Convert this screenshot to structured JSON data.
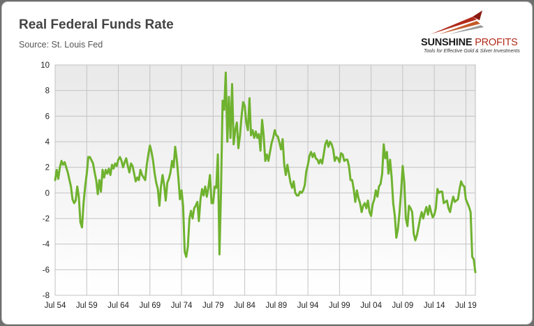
{
  "title": "Real Federal Funds Rate",
  "subtitle": "Source: St. Louis Fed",
  "logo": {
    "name_part1": "SUNSHINE",
    "name_part2": "PROFITS",
    "tagline": "Tools for Effective Gold & Silver Investments",
    "accent_color": "#b22a1a"
  },
  "chart_data": {
    "type": "line",
    "title": "Real Federal Funds Rate",
    "subtitle": "Source: St. Louis Fed",
    "xlabel": "",
    "ylabel": "",
    "ylim": [
      -8,
      10
    ],
    "xlim": [
      "1954-07",
      "2021-01"
    ],
    "yticks": [
      -8,
      -6,
      -4,
      -2,
      0,
      2,
      4,
      6,
      8,
      10
    ],
    "xtick_labels": [
      "Jul 54",
      "Jul 59",
      "Jul 64",
      "Jul 69",
      "Jul 74",
      "Jul 79",
      "Jul 84",
      "Jul 89",
      "Jul 94",
      "Jul 99",
      "Jul 04",
      "Jul 09",
      "Jul 14",
      "Jul 19"
    ],
    "xtick_dates": [
      "1954-07",
      "1959-07",
      "1964-07",
      "1969-07",
      "1974-07",
      "1979-07",
      "1984-07",
      "1989-07",
      "1994-07",
      "1999-07",
      "2004-07",
      "2009-07",
      "2014-07",
      "2019-07"
    ],
    "grid": "vertical and horizontal",
    "legend": "none",
    "series": [
      {
        "color": "#6fb22f",
        "points": [
          [
            "1954-07",
            1.0
          ],
          [
            "1954-10",
            1.8
          ],
          [
            "1955-01",
            1.1
          ],
          [
            "1955-04",
            2.0
          ],
          [
            "1955-07",
            2.5
          ],
          [
            "1955-10",
            2.2
          ],
          [
            "1956-01",
            2.4
          ],
          [
            "1956-07",
            1.6
          ],
          [
            "1957-01",
            0.5
          ],
          [
            "1957-04",
            -0.5
          ],
          [
            "1957-07",
            -0.8
          ],
          [
            "1957-10",
            -0.6
          ],
          [
            "1958-01",
            0.5
          ],
          [
            "1958-04",
            -0.3
          ],
          [
            "1958-07",
            -2.3
          ],
          [
            "1958-10",
            -2.7
          ],
          [
            "1959-01",
            -0.8
          ],
          [
            "1959-04",
            0.5
          ],
          [
            "1959-07",
            1.5
          ],
          [
            "1959-10",
            2.8
          ],
          [
            "1960-01",
            2.8
          ],
          [
            "1960-07",
            2.3
          ],
          [
            "1960-10",
            1.6
          ],
          [
            "1961-01",
            1.0
          ],
          [
            "1961-04",
            -0.1
          ],
          [
            "1961-07",
            1.0
          ],
          [
            "1961-10",
            0.1
          ],
          [
            "1962-01",
            1.8
          ],
          [
            "1962-04",
            1.2
          ],
          [
            "1962-07",
            1.8
          ],
          [
            "1962-10",
            1.5
          ],
          [
            "1963-01",
            1.9
          ],
          [
            "1963-04",
            1.4
          ],
          [
            "1963-07",
            2.2
          ],
          [
            "1963-10",
            1.9
          ],
          [
            "1964-01",
            2.3
          ],
          [
            "1964-04",
            2.1
          ],
          [
            "1964-07",
            2.6
          ],
          [
            "1964-10",
            2.8
          ],
          [
            "1965-01",
            2.5
          ],
          [
            "1965-04",
            2.0
          ],
          [
            "1965-07",
            2.4
          ],
          [
            "1965-10",
            2.7
          ],
          [
            "1966-01",
            2.1
          ],
          [
            "1966-04",
            1.6
          ],
          [
            "1966-07",
            2.3
          ],
          [
            "1966-10",
            2.1
          ],
          [
            "1967-01",
            1.5
          ],
          [
            "1967-04",
            0.9
          ],
          [
            "1967-07",
            1.2
          ],
          [
            "1967-10",
            1.0
          ],
          [
            "1968-01",
            1.8
          ],
          [
            "1968-04",
            1.4
          ],
          [
            "1968-07",
            1.2
          ],
          [
            "1968-10",
            1.0
          ],
          [
            "1969-01",
            2.2
          ],
          [
            "1969-04",
            3.0
          ],
          [
            "1969-07",
            3.7
          ],
          [
            "1969-10",
            3.2
          ],
          [
            "1970-01",
            2.5
          ],
          [
            "1970-04",
            1.5
          ],
          [
            "1970-07",
            0.8
          ],
          [
            "1970-10",
            0.3
          ],
          [
            "1971-01",
            -1.0
          ],
          [
            "1971-04",
            0.5
          ],
          [
            "1971-07",
            1.4
          ],
          [
            "1971-10",
            0.6
          ],
          [
            "1972-01",
            -0.6
          ],
          [
            "1972-04",
            0.8
          ],
          [
            "1972-07",
            1.1
          ],
          [
            "1972-10",
            1.6
          ],
          [
            "1973-01",
            2.5
          ],
          [
            "1973-04",
            2.0
          ],
          [
            "1973-07",
            3.6
          ],
          [
            "1973-10",
            2.6
          ],
          [
            "1974-01",
            1.2
          ],
          [
            "1974-04",
            -0.5
          ],
          [
            "1974-07",
            0.2
          ],
          [
            "1974-10",
            -1.0
          ],
          [
            "1975-01",
            -4.6
          ],
          [
            "1975-04",
            -5.0
          ],
          [
            "1975-07",
            -4.2
          ],
          [
            "1975-10",
            -2.0
          ],
          [
            "1976-01",
            -1.4
          ],
          [
            "1976-04",
            -2.0
          ],
          [
            "1976-07",
            -1.2
          ],
          [
            "1976-10",
            -1.0
          ],
          [
            "1977-01",
            -0.7
          ],
          [
            "1977-04",
            -2.2
          ],
          [
            "1977-07",
            -0.5
          ],
          [
            "1977-10",
            0.3
          ],
          [
            "1978-01",
            -0.2
          ],
          [
            "1978-04",
            0.5
          ],
          [
            "1978-07",
            -0.3
          ],
          [
            "1978-10",
            0.4
          ],
          [
            "1979-01",
            1.4
          ],
          [
            "1979-04",
            -0.8
          ],
          [
            "1979-07",
            -0.8
          ],
          [
            "1979-10",
            0.5
          ],
          [
            "1980-01",
            0.4
          ],
          [
            "1980-04",
            3.0
          ],
          [
            "1980-07",
            -4.8
          ],
          [
            "1980-10",
            0.1
          ],
          [
            "1981-01",
            7.2
          ],
          [
            "1981-04",
            6.5
          ],
          [
            "1981-07",
            9.4
          ],
          [
            "1981-10",
            4.0
          ],
          [
            "1982-01",
            7.5
          ],
          [
            "1982-04",
            4.3
          ],
          [
            "1982-07",
            8.5
          ],
          [
            "1982-10",
            3.8
          ],
          [
            "1983-01",
            4.9
          ],
          [
            "1983-04",
            5.5
          ],
          [
            "1983-07",
            3.5
          ],
          [
            "1983-10",
            4.5
          ],
          [
            "1984-01",
            6.0
          ],
          [
            "1984-04",
            7.1
          ],
          [
            "1984-07",
            6.8
          ],
          [
            "1984-10",
            5.5
          ],
          [
            "1985-01",
            4.9
          ],
          [
            "1985-04",
            7.4
          ],
          [
            "1985-07",
            4.5
          ],
          [
            "1985-10",
            4.9
          ],
          [
            "1986-01",
            4.3
          ],
          [
            "1986-04",
            4.8
          ],
          [
            "1986-07",
            4.3
          ],
          [
            "1986-10",
            4.6
          ],
          [
            "1987-01",
            3.3
          ],
          [
            "1987-04",
            5.7
          ],
          [
            "1987-07",
            4.5
          ],
          [
            "1987-10",
            2.5
          ],
          [
            "1988-01",
            3.0
          ],
          [
            "1988-04",
            2.5
          ],
          [
            "1988-07",
            3.2
          ],
          [
            "1988-10",
            3.9
          ],
          [
            "1989-01",
            4.3
          ],
          [
            "1989-04",
            4.9
          ],
          [
            "1989-07",
            4.5
          ],
          [
            "1989-10",
            4.4
          ],
          [
            "1990-01",
            3.9
          ],
          [
            "1990-04",
            3.4
          ],
          [
            "1990-07",
            4.2
          ],
          [
            "1990-10",
            2.2
          ],
          [
            "1991-01",
            1.4
          ],
          [
            "1991-04",
            2.2
          ],
          [
            "1991-07",
            1.5
          ],
          [
            "1991-10",
            0.8
          ],
          [
            "1992-01",
            0.4
          ],
          [
            "1992-04",
            0.9
          ],
          [
            "1992-07",
            0.0
          ],
          [
            "1992-10",
            -0.2
          ],
          [
            "1993-01",
            -0.2
          ],
          [
            "1993-04",
            0.1
          ],
          [
            "1993-07",
            0.0
          ],
          [
            "1993-10",
            0.2
          ],
          [
            "1994-01",
            0.6
          ],
          [
            "1994-04",
            1.7
          ],
          [
            "1994-07",
            2.2
          ],
          [
            "1994-10",
            2.9
          ],
          [
            "1995-01",
            3.2
          ],
          [
            "1995-04",
            2.8
          ],
          [
            "1995-07",
            3.1
          ],
          [
            "1995-10",
            2.7
          ],
          [
            "1996-01",
            2.6
          ],
          [
            "1996-04",
            2.3
          ],
          [
            "1996-07",
            2.6
          ],
          [
            "1996-10",
            2.3
          ],
          [
            "1997-01",
            3.0
          ],
          [
            "1997-04",
            3.8
          ],
          [
            "1997-07",
            4.1
          ],
          [
            "1997-10",
            3.6
          ],
          [
            "1998-01",
            4.0
          ],
          [
            "1998-04",
            3.8
          ],
          [
            "1998-07",
            3.4
          ],
          [
            "1998-10",
            2.5
          ],
          [
            "1999-01",
            2.8
          ],
          [
            "1999-04",
            2.7
          ],
          [
            "1999-07",
            2.4
          ],
          [
            "1999-10",
            3.1
          ],
          [
            "2000-01",
            3.0
          ],
          [
            "2000-04",
            2.5
          ],
          [
            "2000-07",
            2.6
          ],
          [
            "2000-10",
            2.6
          ],
          [
            "2001-01",
            2.1
          ],
          [
            "2001-04",
            1.0
          ],
          [
            "2001-07",
            1.0
          ],
          [
            "2001-10",
            0.3
          ],
          [
            "2002-01",
            -0.7
          ],
          [
            "2002-04",
            0.2
          ],
          [
            "2002-07",
            -0.4
          ],
          [
            "2002-10",
            -0.8
          ],
          [
            "2003-01",
            -1.5
          ],
          [
            "2003-04",
            -1.0
          ],
          [
            "2003-07",
            -0.8
          ],
          [
            "2003-10",
            -1.2
          ],
          [
            "2004-01",
            -0.6
          ],
          [
            "2004-04",
            -1.5
          ],
          [
            "2004-07",
            -1.8
          ],
          [
            "2004-10",
            -0.9
          ],
          [
            "2005-01",
            -0.5
          ],
          [
            "2005-04",
            0.2
          ],
          [
            "2005-07",
            -0.3
          ],
          [
            "2005-10",
            0.5
          ],
          [
            "2006-01",
            0.7
          ],
          [
            "2006-04",
            1.5
          ],
          [
            "2006-07",
            3.8
          ],
          [
            "2006-10",
            2.7
          ],
          [
            "2007-01",
            3.2
          ],
          [
            "2007-04",
            1.5
          ],
          [
            "2007-07",
            2.6
          ],
          [
            "2007-10",
            1.2
          ],
          [
            "2008-01",
            -0.8
          ],
          [
            "2008-04",
            -1.8
          ],
          [
            "2008-07",
            -3.5
          ],
          [
            "2008-10",
            -2.8
          ],
          [
            "2009-01",
            -1.5
          ],
          [
            "2009-04",
            0.1
          ],
          [
            "2009-07",
            2.1
          ],
          [
            "2009-10",
            0.8
          ],
          [
            "2010-01",
            -2.0
          ],
          [
            "2010-04",
            -2.6
          ],
          [
            "2010-07",
            -1.0
          ],
          [
            "2010-10",
            -1.2
          ],
          [
            "2011-01",
            -1.5
          ],
          [
            "2011-04",
            -3.2
          ],
          [
            "2011-07",
            -3.7
          ],
          [
            "2011-10",
            -3.3
          ],
          [
            "2012-01",
            -2.7
          ],
          [
            "2012-04",
            -2.0
          ],
          [
            "2012-07",
            -1.5
          ],
          [
            "2012-10",
            -2.0
          ],
          [
            "2013-01",
            -1.5
          ],
          [
            "2013-04",
            -1.1
          ],
          [
            "2013-07",
            -1.7
          ],
          [
            "2013-10",
            -1.0
          ],
          [
            "2014-01",
            -1.5
          ],
          [
            "2014-04",
            -1.9
          ],
          [
            "2014-07",
            -1.7
          ],
          [
            "2014-10",
            -1.2
          ],
          [
            "2015-01",
            0.3
          ],
          [
            "2015-04",
            0.0
          ],
          [
            "2015-07",
            0.1
          ],
          [
            "2015-10",
            0.1
          ],
          [
            "2016-01",
            -0.8
          ],
          [
            "2016-04",
            -0.7
          ],
          [
            "2016-07",
            -0.6
          ],
          [
            "2016-10",
            -1.2
          ],
          [
            "2017-01",
            -1.5
          ],
          [
            "2017-04",
            -0.8
          ],
          [
            "2017-07",
            -0.3
          ],
          [
            "2017-10",
            -0.7
          ],
          [
            "2018-01",
            -0.6
          ],
          [
            "2018-04",
            -0.5
          ],
          [
            "2018-07",
            0.3
          ],
          [
            "2018-10",
            0.9
          ],
          [
            "2019-01",
            0.6
          ],
          [
            "2019-04",
            0.5
          ],
          [
            "2019-07",
            -0.5
          ],
          [
            "2019-10",
            -0.8
          ],
          [
            "2020-01",
            -1.1
          ],
          [
            "2020-04",
            -1.5
          ],
          [
            "2020-07",
            -5.0
          ],
          [
            "2020-10",
            -5.2
          ],
          [
            "2021-01",
            -6.2
          ]
        ]
      }
    ]
  }
}
